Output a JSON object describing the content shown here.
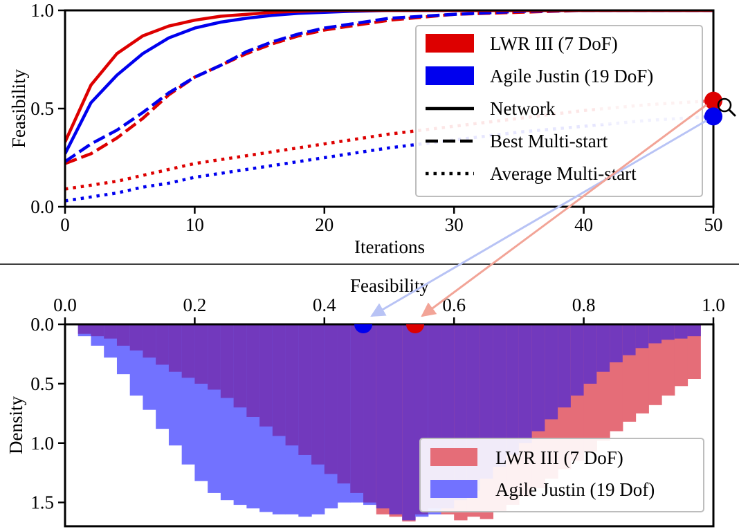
{
  "chart_data": [
    {
      "type": "line",
      "xlabel": "Iterations",
      "ylabel": "Feasibility",
      "xlim": [
        0,
        50
      ],
      "ylim": [
        0,
        1
      ],
      "xticks": [
        "0",
        "10",
        "20",
        "30",
        "40",
        "50"
      ],
      "yticks": [
        "0.0",
        "0.5",
        "1.0"
      ],
      "legend_position": "right",
      "legend": [
        {
          "label": "LWR III (7 DoF)",
          "kind": "patch",
          "color": "#dd0000"
        },
        {
          "label": "Agile Justin (19 DoF)",
          "kind": "patch",
          "color": "#0000ee"
        },
        {
          "label": "Network",
          "kind": "solid"
        },
        {
          "label": "Best Multi-start",
          "kind": "dashed"
        },
        {
          "label": "Average Multi-start",
          "kind": "dotted"
        }
      ],
      "x": [
        0,
        2,
        4,
        6,
        8,
        10,
        12,
        14,
        16,
        18,
        20,
        22,
        25,
        30,
        35,
        40,
        45,
        50
      ],
      "series": [
        {
          "group": "LWR III (7 DoF)",
          "style": "Network",
          "color": "#dd0000",
          "values": [
            0.33,
            0.62,
            0.78,
            0.87,
            0.92,
            0.95,
            0.97,
            0.98,
            0.99,
            0.995,
            1.0,
            1.0,
            1.0,
            1.0,
            1.0,
            1.0,
            1.0,
            1.0
          ]
        },
        {
          "group": "Agile Justin (19 DoF)",
          "style": "Network",
          "color": "#0000ee",
          "values": [
            0.27,
            0.53,
            0.67,
            0.78,
            0.86,
            0.91,
            0.94,
            0.96,
            0.975,
            0.985,
            0.99,
            0.995,
            1.0,
            1.0,
            1.0,
            1.0,
            1.0,
            1.0
          ]
        },
        {
          "group": "LWR III (7 DoF)",
          "style": "Best Multi-start",
          "color": "#dd0000",
          "values": [
            0.22,
            0.27,
            0.35,
            0.45,
            0.57,
            0.66,
            0.72,
            0.78,
            0.83,
            0.87,
            0.9,
            0.92,
            0.95,
            0.98,
            0.99,
            1.0,
            1.0,
            1.0
          ]
        },
        {
          "group": "Agile Justin (19 DoF)",
          "style": "Best Multi-start",
          "color": "#0000ee",
          "values": [
            0.23,
            0.32,
            0.39,
            0.48,
            0.58,
            0.66,
            0.72,
            0.79,
            0.84,
            0.88,
            0.91,
            0.93,
            0.96,
            0.98,
            0.995,
            1.0,
            1.0,
            1.0
          ]
        },
        {
          "group": "LWR III (7 DoF)",
          "style": "Average Multi-start",
          "color": "#dd0000",
          "values": [
            0.09,
            0.11,
            0.13,
            0.16,
            0.19,
            0.22,
            0.24,
            0.26,
            0.28,
            0.3,
            0.32,
            0.34,
            0.37,
            0.41,
            0.45,
            0.49,
            0.52,
            0.54
          ]
        },
        {
          "group": "Agile Justin (19 DoF)",
          "style": "Average Multi-start",
          "color": "#0000ee",
          "values": [
            0.03,
            0.05,
            0.07,
            0.1,
            0.12,
            0.15,
            0.17,
            0.19,
            0.21,
            0.23,
            0.25,
            0.27,
            0.3,
            0.34,
            0.38,
            0.41,
            0.44,
            0.46
          ]
        }
      ],
      "final_markers": [
        {
          "group": "LWR III (7 DoF)",
          "x": 50,
          "y": 0.54,
          "color": "#dd0000"
        },
        {
          "group": "Agile Justin (19 DoF)",
          "x": 50,
          "y": 0.46,
          "color": "#0000ee"
        }
      ],
      "annotation_icon": "magnifier-icon"
    },
    {
      "type": "bar",
      "xlabel": "Feasibility",
      "ylabel": "Density",
      "xlim": [
        0,
        1
      ],
      "ylim": [
        0,
        1.7
      ],
      "y_inverted": true,
      "x_axis_position": "top",
      "xticks": [
        "0.0",
        "0.2",
        "0.4",
        "0.6",
        "0.8",
        "1.0"
      ],
      "yticks": [
        "0.0",
        "0.5",
        "1.0",
        "1.5"
      ],
      "legend_position": "bottom-right",
      "legend": [
        {
          "label": "LWR III (7 DoF)",
          "color": "#e56d78"
        },
        {
          "label": "Agile Justin (19 Dof)",
          "color": "#7272ff"
        }
      ],
      "overlap_color": "#7239bd",
      "bin_width": 0.02,
      "bin_start": 0.02,
      "series": [
        {
          "name": "LWR III (7 DoF)",
          "color": "#e56d78",
          "values": [
            0.08,
            0.1,
            0.12,
            0.18,
            0.22,
            0.28,
            0.34,
            0.4,
            0.45,
            0.5,
            0.55,
            0.62,
            0.7,
            0.78,
            0.86,
            0.94,
            1.02,
            1.1,
            1.18,
            1.26,
            1.34,
            1.42,
            1.5,
            1.6,
            1.62,
            1.66,
            1.6,
            1.55,
            1.6,
            1.65,
            1.62,
            1.64,
            1.58,
            1.52,
            1.45,
            1.38,
            1.3,
            1.22,
            1.15,
            1.07,
            0.98,
            0.9,
            0.82,
            0.75,
            0.68,
            0.6,
            0.52,
            0.46
          ]
        },
        {
          "name": "Agile Justin (19 Dof)",
          "color": "#7272ff",
          "values": [
            0.1,
            0.18,
            0.28,
            0.42,
            0.6,
            0.72,
            0.88,
            1.02,
            1.18,
            1.32,
            1.42,
            1.48,
            1.52,
            1.55,
            1.58,
            1.6,
            1.6,
            1.62,
            1.6,
            1.55,
            1.5,
            1.5,
            1.52,
            1.55,
            1.6,
            1.65,
            1.62,
            1.6,
            1.55,
            1.48,
            1.4,
            1.3,
            1.2,
            1.1,
            1.0,
            0.9,
            0.8,
            0.7,
            0.6,
            0.5,
            0.4,
            0.32,
            0.26,
            0.2,
            0.16,
            0.13,
            0.12,
            0.1
          ]
        }
      ],
      "markers": [
        {
          "group": "Agile Justin (19 Dof)",
          "x": 0.46,
          "y": 0.0,
          "color": "#0000ee"
        },
        {
          "group": "LWR III (7 DoF)",
          "x": 0.54,
          "y": 0.0,
          "color": "#dd0000"
        }
      ]
    }
  ]
}
